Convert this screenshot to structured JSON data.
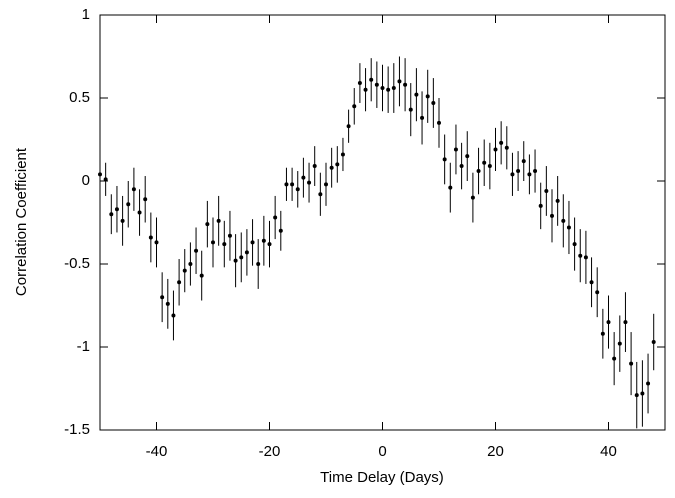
{
  "chart_data": {
    "type": "errorbar",
    "xlabel": "Time Delay (Days)",
    "ylabel": "Correlation Coefficient",
    "xlim": [
      -50,
      50
    ],
    "ylim": [
      -1.5,
      1
    ],
    "xticks": [
      -40,
      -20,
      0,
      20,
      40
    ],
    "yticks": [
      -1.5,
      -1,
      -0.5,
      0,
      0.5,
      1
    ],
    "color": "#000000",
    "x": [
      -50,
      -49,
      -48,
      -47,
      -46,
      -45,
      -44,
      -43,
      -42,
      -41,
      -40,
      -39,
      -38,
      -37,
      -36,
      -35,
      -34,
      -33,
      -32,
      -31,
      -30,
      -29,
      -28,
      -27,
      -26,
      -25,
      -24,
      -23,
      -22,
      -21,
      -20,
      -19,
      -18,
      -17,
      -16,
      -15,
      -14,
      -13,
      -12,
      -11,
      -10,
      -9,
      -8,
      -7,
      -6,
      -5,
      -4,
      -3,
      -2,
      -1,
      0,
      1,
      2,
      3,
      4,
      5,
      6,
      7,
      8,
      9,
      10,
      11,
      12,
      13,
      14,
      15,
      16,
      17,
      18,
      19,
      20,
      21,
      22,
      23,
      24,
      25,
      26,
      27,
      28,
      29,
      30,
      31,
      32,
      33,
      34,
      35,
      36,
      37,
      38,
      39,
      40,
      41,
      42,
      43,
      44,
      45,
      46,
      47,
      48
    ],
    "values": [
      0.04,
      0.01,
      -0.2,
      -0.17,
      -0.24,
      -0.14,
      -0.05,
      -0.19,
      -0.11,
      -0.34,
      -0.37,
      -0.7,
      -0.74,
      -0.81,
      -0.61,
      -0.54,
      -0.5,
      -0.42,
      -0.57,
      -0.26,
      -0.37,
      -0.24,
      -0.38,
      -0.33,
      -0.48,
      -0.46,
      -0.43,
      -0.37,
      -0.5,
      -0.36,
      -0.38,
      -0.22,
      -0.3,
      -0.02,
      -0.02,
      -0.05,
      0.02,
      -0.01,
      0.09,
      -0.08,
      -0.02,
      0.08,
      0.1,
      0.16,
      0.33,
      0.45,
      0.59,
      0.55,
      0.61,
      0.58,
      0.56,
      0.55,
      0.56,
      0.6,
      0.58,
      0.43,
      0.52,
      0.38,
      0.51,
      0.47,
      0.35,
      0.13,
      -0.04,
      0.19,
      0.09,
      0.15,
      -0.1,
      0.06,
      0.11,
      0.09,
      0.19,
      0.23,
      0.2,
      0.04,
      0.06,
      0.12,
      0.04,
      0.06,
      -0.15,
      -0.06,
      -0.21,
      -0.12,
      -0.24,
      -0.28,
      -0.38,
      -0.45,
      -0.46,
      -0.61,
      -0.67,
      -0.92,
      -0.85,
      -1.07,
      -0.98,
      -0.85,
      -1.1,
      -1.29,
      -1.28,
      -1.22,
      -0.97
    ],
    "errors": [
      0.1,
      0.1,
      0.12,
      0.14,
      0.15,
      0.14,
      0.13,
      0.14,
      0.14,
      0.15,
      0.15,
      0.15,
      0.15,
      0.15,
      0.14,
      0.13,
      0.13,
      0.14,
      0.15,
      0.14,
      0.15,
      0.15,
      0.14,
      0.15,
      0.16,
      0.15,
      0.14,
      0.14,
      0.15,
      0.15,
      0.14,
      0.13,
      0.12,
      0.1,
      0.1,
      0.11,
      0.12,
      0.12,
      0.12,
      0.13,
      0.13,
      0.12,
      0.11,
      0.1,
      0.1,
      0.11,
      0.12,
      0.13,
      0.13,
      0.14,
      0.14,
      0.14,
      0.15,
      0.15,
      0.16,
      0.16,
      0.16,
      0.16,
      0.16,
      0.15,
      0.15,
      0.15,
      0.15,
      0.15,
      0.14,
      0.15,
      0.15,
      0.14,
      0.14,
      0.14,
      0.13,
      0.13,
      0.13,
      0.13,
      0.12,
      0.12,
      0.12,
      0.13,
      0.14,
      0.15,
      0.16,
      0.15,
      0.16,
      0.16,
      0.16,
      0.16,
      0.16,
      0.15,
      0.15,
      0.15,
      0.16,
      0.16,
      0.17,
      0.18,
      0.19,
      0.2,
      0.2,
      0.18,
      0.17
    ]
  }
}
